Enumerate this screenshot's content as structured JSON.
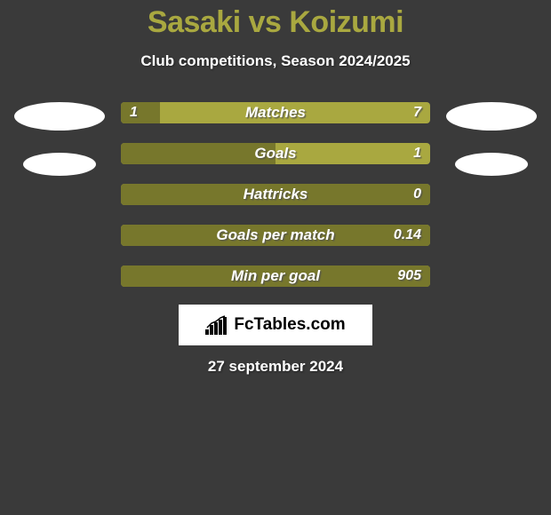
{
  "header": {
    "title": "Sasaki vs Koizumi",
    "subtitle": "Club competitions, Season 2024/2025"
  },
  "colors": {
    "background": "#3a3a3a",
    "bar_bg": "#a9a840",
    "bar_fill": "#77772c",
    "title_color": "#a9a840",
    "text_white": "#ffffff",
    "avatar_bg": "#ffffff"
  },
  "stats": [
    {
      "label": "Matches",
      "left_value": "1",
      "right_value": "7",
      "left_fill_pct": 12.5
    },
    {
      "label": "Goals",
      "left_value": "",
      "right_value": "1",
      "left_fill_pct": 50
    },
    {
      "label": "Hattricks",
      "left_value": "",
      "right_value": "0",
      "left_fill_pct": 100
    },
    {
      "label": "Goals per match",
      "left_value": "",
      "right_value": "0.14",
      "left_fill_pct": 100
    },
    {
      "label": "Min per goal",
      "left_value": "",
      "right_value": "905",
      "left_fill_pct": 100
    }
  ],
  "footer": {
    "logo_text": "FcTables.com",
    "date": "27 september 2024"
  }
}
